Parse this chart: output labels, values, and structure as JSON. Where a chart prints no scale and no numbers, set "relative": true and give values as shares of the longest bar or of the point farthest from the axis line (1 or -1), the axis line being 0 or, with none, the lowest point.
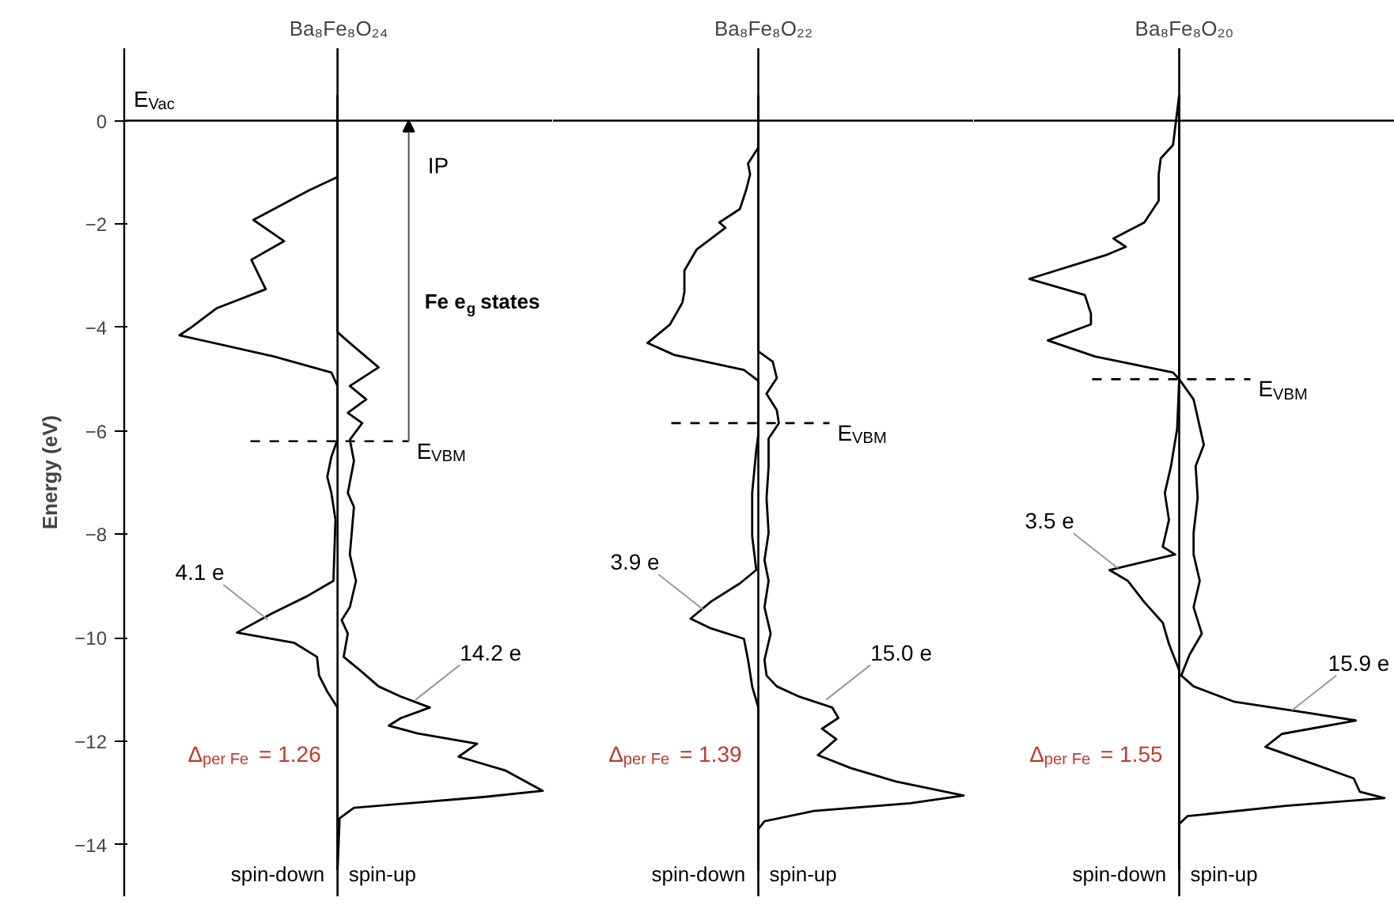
{
  "chart_data": [
    {
      "type": "line",
      "orientation": "horizontal",
      "relative": true,
      "title": "Ba₈Fe₈O₂₄",
      "ylabel": "Energy (eV)",
      "ylim": [
        -15,
        1.4
      ],
      "yticks": [
        0,
        -2,
        -4,
        -6,
        -8,
        -10,
        -12,
        -14
      ],
      "tick_labels": "y",
      "series": [
        {
          "name": "spin-down",
          "color": "#000000",
          "x": [
            0.5,
            -1.09,
            -1.35,
            -1.92,
            -2.33,
            -2.69,
            -3.26,
            -3.63,
            -3.99,
            -4.15,
            -4.56,
            -4.87,
            -5.13,
            -6.17,
            -6.5,
            -6.89,
            -7.2,
            -7.72,
            -8.9,
            -9.2,
            -9.53,
            -9.9,
            -10.1,
            -10.37,
            -10.73,
            -11.04,
            -11.35,
            -14.5
          ],
          "values": [
            0,
            0,
            -0.14,
            -0.41,
            -0.26,
            -0.42,
            -0.35,
            -0.59,
            -0.71,
            -0.77,
            -0.31,
            -0.03,
            0,
            0,
            -0.03,
            -0.05,
            -0.03,
            -0.01,
            -0.02,
            -0.15,
            -0.32,
            -0.49,
            -0.21,
            -0.1,
            -0.09,
            -0.05,
            0,
            0
          ]
        },
        {
          "name": "spin-up",
          "color": "#000000",
          "x": [
            0.5,
            -4.09,
            -4.3,
            -4.77,
            -5.13,
            -5.39,
            -5.65,
            -5.85,
            -6.17,
            -6.58,
            -7.2,
            -7.47,
            -8.39,
            -8.9,
            -9.41,
            -9.66,
            -9.92,
            -10.37,
            -10.63,
            -10.94,
            -11.14,
            -11.35,
            -11.55,
            -11.7,
            -11.85,
            -12.05,
            -12.3,
            -12.57,
            -12.96,
            -13.08,
            -13.29,
            -13.49,
            -14.5
          ],
          "values": [
            0,
            0,
            0.06,
            0.2,
            0.06,
            0.14,
            0.05,
            0.12,
            0.06,
            0.08,
            0.05,
            0.08,
            0.06,
            0.09,
            0.06,
            0.02,
            0.05,
            0.03,
            0.11,
            0.2,
            0.31,
            0.45,
            0.31,
            0.25,
            0.39,
            0.68,
            0.59,
            0.82,
            1,
            0.71,
            0.08,
            0.01,
            0
          ]
        }
      ],
      "ref_lines": [
        {
          "axis": "y",
          "value": 0,
          "label": "E$_{Vac}$",
          "color": "#000000",
          "line_style": "solid"
        },
        {
          "axis": "y",
          "value": -6.2,
          "label": "E$_{VBM}$",
          "color": "#000000",
          "line_style": "dashed"
        }
      ],
      "annotations": [
        "IP",
        "Fe e$_{g}$ states",
        {
          "text": "4.1 e",
          "x": -0.34,
          "y": -9.65
        },
        {
          "text": "14.2 e",
          "x": 0.38,
          "y": -11.2
        },
        "Δ$_{per Fe}$ = 1.26"
      ]
    },
    {
      "type": "line",
      "orientation": "horizontal",
      "relative": true,
      "title": "Ba₈Fe₈O₂₂",
      "ylim": [
        -15,
        1.4
      ],
      "yticks": [
        0,
        -2,
        -4,
        -6,
        -8,
        -10,
        -12,
        -14
      ],
      "tick_labels": false,
      "series": [
        {
          "name": "spin-down",
          "color": "#000000",
          "x": [
            0.5,
            -0.52,
            -0.83,
            -1.04,
            -1.35,
            -1.71,
            -1.97,
            -2.07,
            -2.49,
            -2.9,
            -3.31,
            -3.52,
            -3.94,
            -4.3,
            -4.53,
            -4.82,
            -5.03,
            -6.07,
            -6.37,
            -7.2,
            -8.03,
            -8.69,
            -8.95,
            -9.3,
            -9.63,
            -9.82,
            -10.02,
            -10.43,
            -10.94,
            -11.35,
            -14.5
          ],
          "values": [
            0,
            0,
            -0.05,
            -0.04,
            -0.06,
            -0.09,
            -0.19,
            -0.16,
            -0.3,
            -0.36,
            -0.36,
            -0.37,
            -0.43,
            -0.54,
            -0.41,
            -0.07,
            0,
            0,
            -0.01,
            -0.03,
            -0.03,
            -0.01,
            -0.09,
            -0.23,
            -0.33,
            -0.23,
            -0.07,
            -0.05,
            -0.03,
            0,
            0
          ]
        },
        {
          "name": "spin-up",
          "color": "#000000",
          "x": [
            0.5,
            -4.46,
            -4.66,
            -4.98,
            -5.28,
            -5.6,
            -5.85,
            -6.15,
            -6.7,
            -7.3,
            -7.97,
            -8.5,
            -8.9,
            -9.41,
            -9.92,
            -10.43,
            -10.73,
            -10.94,
            -11.14,
            -11.35,
            -11.55,
            -11.76,
            -11.96,
            -12.27,
            -12.52,
            -12.78,
            -13.05,
            -13.2,
            -13.35,
            -13.55,
            -13.7,
            -14.5
          ],
          "values": [
            0,
            0,
            0.07,
            0.09,
            0.04,
            0.09,
            0.1,
            0.05,
            0.05,
            0.04,
            0.05,
            0.03,
            0.05,
            0.03,
            0.06,
            0.03,
            0.04,
            0.09,
            0.2,
            0.36,
            0.39,
            0.31,
            0.38,
            0.29,
            0.45,
            0.67,
            1,
            0.74,
            0.27,
            0.03,
            0,
            0
          ]
        }
      ],
      "ref_lines": [
        {
          "axis": "y",
          "value": 0,
          "color": "#000000",
          "line_style": "solid"
        },
        {
          "axis": "y",
          "value": -5.85,
          "label": "E$_{VBM}$",
          "color": "#000000",
          "line_style": "dashed"
        }
      ],
      "annotations": [
        {
          "text": "3.9 e",
          "x": -0.27,
          "y": -9.45
        },
        {
          "text": "15.0 e",
          "x": 0.33,
          "y": -11.2
        },
        "Δ$_{per Fe}$ = 1.39"
      ]
    },
    {
      "type": "line",
      "orientation": "horizontal",
      "relative": true,
      "title": "Ba₈Fe₈O₂₀",
      "ylim": [
        -15,
        1.4
      ],
      "yticks": [
        0,
        -2,
        -4,
        -6,
        -8,
        -10,
        -12,
        -14
      ],
      "tick_labels": false,
      "series": [
        {
          "name": "spin-down",
          "color": "#000000",
          "x": [
            0.5,
            -0.47,
            -0.73,
            -1.04,
            -1.55,
            -1.97,
            -2.28,
            -2.44,
            -2.59,
            -3.06,
            -3.37,
            -3.73,
            -3.94,
            -4.25,
            -4.56,
            -4.87,
            -5.0,
            -5.96,
            -6.68,
            -7.2,
            -7.72,
            -8.24,
            -8.39,
            -8.69,
            -8.9,
            -9.31,
            -9.71,
            -10.12,
            -10.63,
            -14.5
          ],
          "values": [
            0,
            -0.03,
            -0.09,
            -0.1,
            -0.1,
            -0.17,
            -0.32,
            -0.26,
            -0.35,
            -0.73,
            -0.46,
            -0.43,
            -0.43,
            -0.64,
            -0.41,
            -0.03,
            0,
            -0.01,
            -0.04,
            -0.07,
            -0.05,
            -0.08,
            -0.02,
            -0.34,
            -0.25,
            -0.17,
            -0.08,
            -0.05,
            0,
            0
          ]
        },
        {
          "name": "spin-up",
          "color": "#000000",
          "x": [
            0.5,
            -5.0,
            -5.39,
            -6.27,
            -6.68,
            -7.3,
            -7.97,
            -8.39,
            -8.9,
            -9.41,
            -9.92,
            -10.33,
            -10.73,
            -10.94,
            -11.24,
            -11.45,
            -11.6,
            -11.86,
            -12.11,
            -12.42,
            -12.72,
            -12.98,
            -13.1,
            -13.25,
            -13.45,
            -13.6,
            -14.5
          ],
          "values": [
            0,
            0,
            0.07,
            0.12,
            0.08,
            0.09,
            0.07,
            0.07,
            0.1,
            0.07,
            0.11,
            0.05,
            0.01,
            0.07,
            0.27,
            0.62,
            0.86,
            0.5,
            0.42,
            0.64,
            0.85,
            0.88,
            1,
            0.52,
            0.04,
            0,
            0
          ]
        }
      ],
      "ref_lines": [
        {
          "axis": "y",
          "value": 0,
          "color": "#000000",
          "line_style": "solid"
        },
        {
          "axis": "y",
          "value": -5.0,
          "label": "E$_{VBM}$",
          "color": "#000000",
          "line_style": "dashed"
        }
      ],
      "annotations": [
        {
          "text": "3.5 e",
          "x": -0.3,
          "y": -8.65
        },
        {
          "text": "15.9 e",
          "x": 0.55,
          "y": -11.4
        },
        "Δ$_{per Fe}$ = 1.55"
      ]
    }
  ]
}
